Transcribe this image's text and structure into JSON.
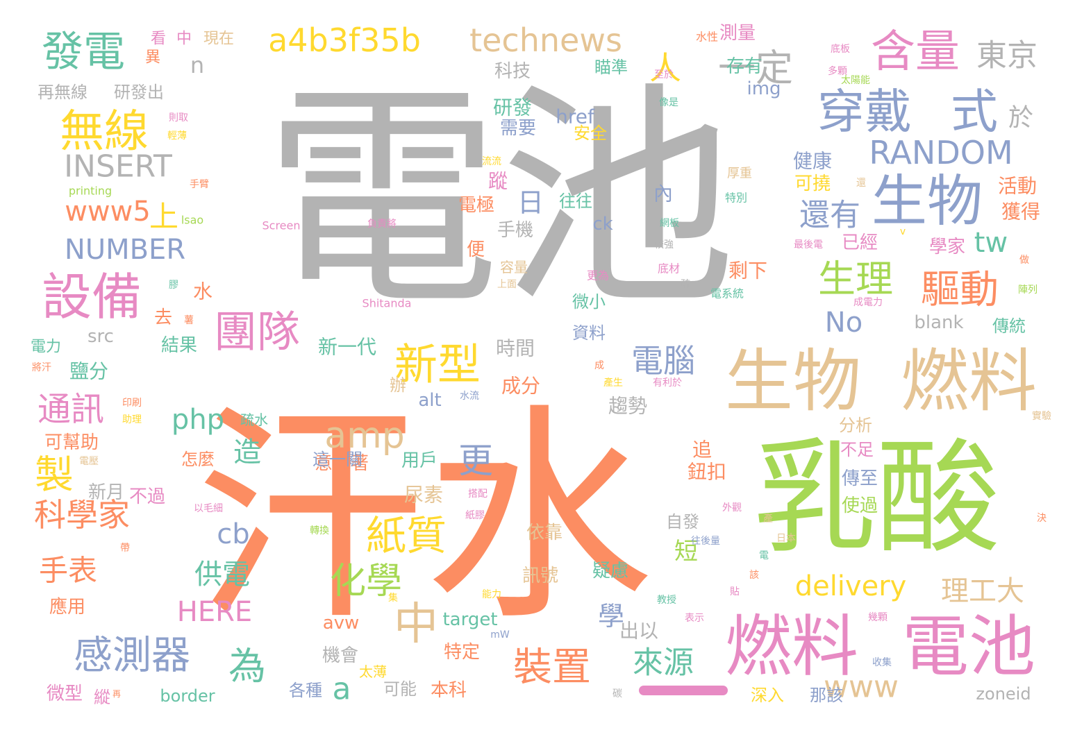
{
  "words": [
    {
      "text": "電池",
      "color": "#b3b3b3"
    },
    {
      "text": "汗水",
      "color": "#fc8d62"
    },
    {
      "text": "乳酸",
      "color": "#a6d854"
    },
    {
      "text": "生物",
      "color": "#e5c494"
    },
    {
      "text": "燃料",
      "color": "#e5c494"
    },
    {
      "text": "燃料",
      "color": "#e78ac3"
    },
    {
      "text": "電池",
      "color": "#e78ac3"
    },
    {
      "text": "生物",
      "color": "#8da0cb"
    },
    {
      "text": "穿戴",
      "color": "#8da0cb"
    },
    {
      "text": "式",
      "color": "#8da0cb"
    },
    {
      "text": "含量",
      "color": "#e78ac3"
    },
    {
      "text": "設備",
      "color": "#e78ac3"
    },
    {
      "text": "無線",
      "color": "#ffd92f"
    },
    {
      "text": "發電",
      "color": "#66c2a5"
    },
    {
      "text": "a4b3f35b",
      "color": "#ffd92f"
    },
    {
      "text": "technews",
      "color": "#e5c494"
    },
    {
      "text": "一定",
      "color": "#b3b3b3"
    },
    {
      "text": "東京",
      "color": "#b3b3b3"
    },
    {
      "text": "團隊",
      "color": "#e78ac3"
    },
    {
      "text": "新型",
      "color": "#ffd92f"
    },
    {
      "text": "驅動",
      "color": "#fc8d62"
    },
    {
      "text": "生理",
      "color": "#a6d854"
    },
    {
      "text": "RANDOM",
      "color": "#8da0cb"
    },
    {
      "text": "INSERT",
      "color": "#b3b3b3"
    },
    {
      "text": "NUMBER",
      "color": "#8da0cb"
    },
    {
      "text": "www5",
      "color": "#fc8d62"
    },
    {
      "text": "amp",
      "color": "#e5c494"
    },
    {
      "text": "中",
      "color": "#e5c494"
    },
    {
      "text": "紙質",
      "color": "#ffd92f"
    },
    {
      "text": "裝置",
      "color": "#fc8d62"
    },
    {
      "text": "感測器",
      "color": "#8da0cb"
    },
    {
      "text": "化學",
      "color": "#a6d854"
    },
    {
      "text": "科學家",
      "color": "#fc8d62"
    },
    {
      "text": "通訊",
      "color": "#e78ac3"
    },
    {
      "text": "製",
      "color": "#ffd92f"
    },
    {
      "text": "為",
      "color": "#66c2a5"
    },
    {
      "text": "電腦",
      "color": "#8da0cb"
    },
    {
      "text": "來源",
      "color": "#66c2a5"
    },
    {
      "text": "還有",
      "color": "#8da0cb"
    },
    {
      "text": "www",
      "color": "#e5c494"
    },
    {
      "text": "delivery",
      "color": "#ffd92f"
    },
    {
      "text": "HERE",
      "color": "#e78ac3"
    },
    {
      "text": "php",
      "color": "#66c2a5"
    },
    {
      "text": "cb",
      "color": "#8da0cb"
    },
    {
      "text": "手表",
      "color": "#fc8d62"
    },
    {
      "text": "供電",
      "color": "#66c2a5"
    },
    {
      "text": "理工大",
      "color": "#e5c494"
    },
    {
      "text": "tw",
      "color": "#66c2a5"
    },
    {
      "text": "No",
      "color": "#8da0cb"
    },
    {
      "text": "人",
      "color": "#ffd92f"
    },
    {
      "text": "上",
      "color": "#ffd92f"
    },
    {
      "text": "日",
      "color": "#8da0cb"
    },
    {
      "text": "n",
      "color": "#b3b3b3"
    },
    {
      "text": "於",
      "color": "#b3b3b3"
    },
    {
      "text": "造",
      "color": "#66c2a5"
    },
    {
      "text": "更",
      "color": "#8da0cb"
    },
    {
      "text": "a",
      "color": "#66c2a5"
    },
    {
      "text": "學",
      "color": "#8da0cb"
    },
    {
      "text": "短",
      "color": "#a6d854"
    },
    {
      "text": "科技",
      "color": "#b3b3b3"
    },
    {
      "text": "研發",
      "color": "#66c2a5"
    },
    {
      "text": "href",
      "color": "#8da0cb"
    },
    {
      "text": "需要",
      "color": "#8da0cb"
    },
    {
      "text": "安全",
      "color": "#ffd92f"
    },
    {
      "text": "健康",
      "color": "#8da0cb"
    },
    {
      "text": "可撓",
      "color": "#ffd92f"
    },
    {
      "text": "img",
      "color": "#8da0cb"
    },
    {
      "text": "存有",
      "color": "#66c2a5"
    },
    {
      "text": "測量",
      "color": "#e78ac3"
    },
    {
      "text": "瞄準",
      "color": "#66c2a5"
    },
    {
      "text": "已經",
      "color": "#e78ac3"
    },
    {
      "text": "學家",
      "color": "#e78ac3"
    },
    {
      "text": "剩下",
      "color": "#fc8d62"
    },
    {
      "text": "獲得",
      "color": "#fc8d62"
    },
    {
      "text": "活動",
      "color": "#fc8d62"
    },
    {
      "text": "blank",
      "color": "#b3b3b3"
    },
    {
      "text": "傳統",
      "color": "#66c2a5"
    },
    {
      "text": "微小",
      "color": "#66c2a5"
    },
    {
      "text": "資料",
      "color": "#8da0cb"
    },
    {
      "text": "時間",
      "color": "#b3b3b3"
    },
    {
      "text": "成分",
      "color": "#fc8d62"
    },
    {
      "text": "趨勢",
      "color": "#b3b3b3"
    },
    {
      "text": "新一代",
      "color": "#66c2a5"
    },
    {
      "text": "alt",
      "color": "#8da0cb"
    },
    {
      "text": "意味著",
      "color": "#fc8d62"
    },
    {
      "text": "用戶",
      "color": "#66c2a5"
    },
    {
      "text": "尿素",
      "color": "#e5c494"
    },
    {
      "text": "分析",
      "color": "#e5c494"
    },
    {
      "text": "不足",
      "color": "#e78ac3"
    },
    {
      "text": "傳至",
      "color": "#8da0cb"
    },
    {
      "text": "使過",
      "color": "#a6d854"
    },
    {
      "text": "鈕扣",
      "color": "#fc8d62"
    },
    {
      "text": "追",
      "color": "#fc8d62"
    },
    {
      "text": "自發",
      "color": "#b3b3b3"
    },
    {
      "text": "這一關",
      "color": "#8da0cb"
    },
    {
      "text": "怎麼",
      "color": "#fc8d62"
    },
    {
      "text": "新月",
      "color": "#b3b3b3"
    },
    {
      "text": "不過",
      "color": "#e78ac3"
    },
    {
      "text": "可幫助",
      "color": "#fc8d62"
    },
    {
      "text": "疏水",
      "color": "#66c2a5"
    },
    {
      "text": "鹽分",
      "color": "#66c2a5"
    },
    {
      "text": "結果",
      "color": "#66c2a5"
    },
    {
      "text": "去",
      "color": "#fc8d62"
    },
    {
      "text": "水",
      "color": "#fc8d62"
    },
    {
      "text": "src",
      "color": "#b3b3b3"
    },
    {
      "text": "電力",
      "color": "#66c2a5"
    },
    {
      "text": "依靠",
      "color": "#e5c494"
    },
    {
      "text": "訊號",
      "color": "#e5c494"
    },
    {
      "text": "疑慮",
      "color": "#66c2a5"
    },
    {
      "text": "target",
      "color": "#66c2a5"
    },
    {
      "text": "avw",
      "color": "#fc8d62"
    },
    {
      "text": "出以",
      "color": "#b3b3b3"
    },
    {
      "text": "特定",
      "color": "#fc8d62"
    },
    {
      "text": "機會",
      "color": "#b3b3b3"
    },
    {
      "text": "太薄",
      "color": "#ffd92f"
    },
    {
      "text": "本科",
      "color": "#fc8d62"
    },
    {
      "text": "可能",
      "color": "#b3b3b3"
    },
    {
      "text": "各種",
      "color": "#8da0cb"
    },
    {
      "text": "border",
      "color": "#66c2a5"
    },
    {
      "text": "微型",
      "color": "#e78ac3"
    },
    {
      "text": "縱",
      "color": "#e78ac3"
    },
    {
      "text": "應用",
      "color": "#fc8d62"
    },
    {
      "text": "深入",
      "color": "#ffd92f"
    },
    {
      "text": "那該",
      "color": "#8da0cb"
    },
    {
      "text": "zoneid",
      "color": "#b3b3b3"
    },
    {
      "text": "再無線",
      "color": "#b3b3b3"
    },
    {
      "text": "研發出",
      "color": "#b3b3b3"
    },
    {
      "text": "看",
      "color": "#e78ac3"
    },
    {
      "text": "中",
      "color": "#e78ac3"
    },
    {
      "text": "現在",
      "color": "#e5c494"
    },
    {
      "text": "異",
      "color": "#fc8d62"
    },
    {
      "text": "printing",
      "color": "#a6d854"
    },
    {
      "text": "Screen",
      "color": "#e78ac3"
    },
    {
      "text": "負責將",
      "color": "#e78ac3"
    },
    {
      "text": "Shitanda",
      "color": "#e78ac3"
    },
    {
      "text": "lsao",
      "color": "#a6d854"
    },
    {
      "text": "手臂",
      "color": "#fc8d62"
    },
    {
      "text": "則取",
      "color": "#e78ac3"
    },
    {
      "text": "輕薄",
      "color": "#ffd92f"
    },
    {
      "text": "膠",
      "color": "#66c2a5"
    },
    {
      "text": "薯",
      "color": "#fc8d62"
    },
    {
      "text": "將汗",
      "color": "#fc8d62"
    },
    {
      "text": "印刷",
      "color": "#fc8d62"
    },
    {
      "text": "助理",
      "color": "#ffd92f"
    },
    {
      "text": "電壓",
      "color": "#e5c494"
    },
    {
      "text": "以毛細",
      "color": "#e78ac3"
    },
    {
      "text": "轉換",
      "color": "#a6d854"
    },
    {
      "text": "帶",
      "color": "#fc8d62"
    },
    {
      "text": "搭配",
      "color": "#e78ac3"
    },
    {
      "text": "紙膠",
      "color": "#e78ac3"
    },
    {
      "text": "集",
      "color": "#ffd92f"
    },
    {
      "text": "能力",
      "color": "#ffd92f"
    },
    {
      "text": "mW",
      "color": "#8da0cb"
    },
    {
      "text": "教授",
      "color": "#66c2a5"
    },
    {
      "text": "表示",
      "color": "#e78ac3"
    },
    {
      "text": "貼",
      "color": "#e78ac3"
    },
    {
      "text": "該",
      "color": "#fc8d62"
    },
    {
      "text": "碳",
      "color": "#b3b3b3"
    },
    {
      "text": "再",
      "color": "#fc8d62"
    },
    {
      "text": "便",
      "color": "#fc8d62"
    },
    {
      "text": "容量",
      "color": "#e5c494"
    },
    {
      "text": "上面",
      "color": "#e5c494"
    },
    {
      "text": "手機",
      "color": "#b3b3b3"
    },
    {
      "text": "ck",
      "color": "#8da0cb"
    },
    {
      "text": "往往",
      "color": "#66c2a5"
    },
    {
      "text": "電極",
      "color": "#fc8d62"
    },
    {
      "text": "蹤",
      "color": "#e78ac3"
    },
    {
      "text": "流流",
      "color": "#ffd92f"
    },
    {
      "text": "水性",
      "color": "#fc8d62"
    },
    {
      "text": "至於",
      "color": "#e78ac3"
    },
    {
      "text": "像是",
      "color": "#66c2a5"
    },
    {
      "text": "厚重",
      "color": "#e5c494"
    },
    {
      "text": "特別",
      "color": "#66c2a5"
    },
    {
      "text": "網板",
      "color": "#66c2a5"
    },
    {
      "text": "較強",
      "color": "#b3b3b3"
    },
    {
      "text": "底材",
      "color": "#e78ac3"
    },
    {
      "text": "更為",
      "color": "#e78ac3"
    },
    {
      "text": "電系統",
      "color": "#66c2a5"
    },
    {
      "text": "疏",
      "color": "#b3b3b3"
    },
    {
      "text": "內",
      "color": "#8da0cb"
    },
    {
      "text": "底板",
      "color": "#e78ac3"
    },
    {
      "text": "多顆",
      "color": "#e78ac3"
    },
    {
      "text": "太陽能",
      "color": "#a6d854"
    },
    {
      "text": "還",
      "color": "#e5c494"
    },
    {
      "text": "最後電",
      "color": "#e78ac3"
    },
    {
      "text": "v",
      "color": "#ffd92f"
    },
    {
      "text": "做",
      "color": "#fc8d62"
    },
    {
      "text": "陣列",
      "color": "#a6d854"
    },
    {
      "text": "成電力",
      "color": "#e78ac3"
    },
    {
      "text": "成",
      "color": "#fc8d62"
    },
    {
      "text": "產生",
      "color": "#ffd92f"
    },
    {
      "text": "有利於",
      "color": "#e78ac3"
    },
    {
      "text": "水流",
      "color": "#8da0cb"
    },
    {
      "text": "辦",
      "color": "#e5c494"
    },
    {
      "text": "外觀",
      "color": "#e78ac3"
    },
    {
      "text": "往後量",
      "color": "#8da0cb"
    },
    {
      "text": "日本",
      "color": "#e5c494"
    },
    {
      "text": "產",
      "color": "#e5c494"
    },
    {
      "text": "電",
      "color": "#66c2a5"
    },
    {
      "text": "實驗",
      "color": "#e5c494"
    },
    {
      "text": "決",
      "color": "#fc8d62"
    },
    {
      "text": "幾顆",
      "color": "#e78ac3"
    },
    {
      "text": "收集",
      "color": "#8da0cb"
    }
  ]
}
